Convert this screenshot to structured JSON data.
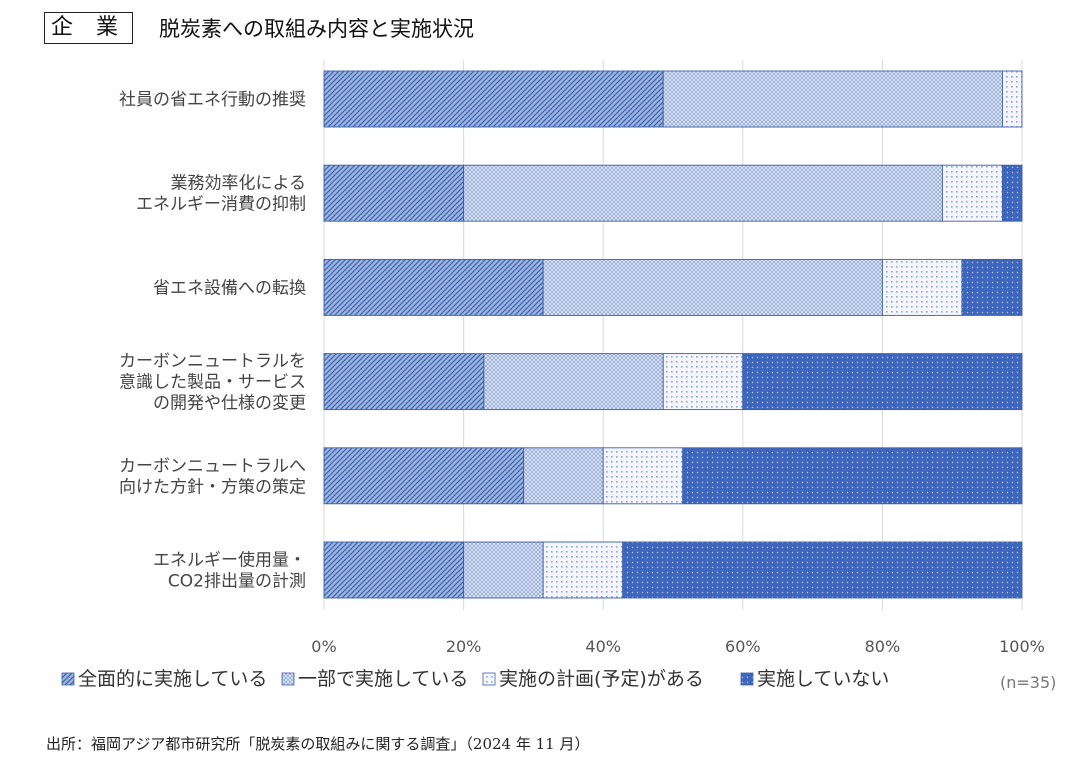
{
  "header": {
    "tag": "企 業",
    "title": "脱炭素への取組み内容と実施状況"
  },
  "chart_data": {
    "type": "bar",
    "orientation": "horizontal",
    "stacked": true,
    "categories": [
      [
        "社員の省エネ行動の推奨"
      ],
      [
        "業務効率化による",
        "エネルギー消費の抑制"
      ],
      [
        "省エネ設備への転換"
      ],
      [
        "カーボンニュートラルを",
        "意識した製品・サービス",
        "の開発や仕様の変更"
      ],
      [
        "カーボンニュートラルへ",
        "向けた方針・方策の策定"
      ],
      [
        "エネルギー使用量・",
        "CO2排出量の計測"
      ]
    ],
    "series": [
      {
        "name": "全面的に実施している",
        "values": [
          48.6,
          20.0,
          31.4,
          22.9,
          28.6,
          20.0
        ]
      },
      {
        "name": "一部で実施している",
        "values": [
          48.6,
          68.6,
          48.6,
          25.7,
          11.4,
          11.4
        ]
      },
      {
        "name": "実施の計画(予定)がある",
        "values": [
          2.8,
          8.6,
          11.4,
          11.4,
          11.4,
          11.4
        ]
      },
      {
        "name": "実施していない",
        "values": [
          0.0,
          2.8,
          8.6,
          40.0,
          48.6,
          57.2
        ]
      }
    ],
    "xlim": [
      0,
      100
    ],
    "xticks": [
      "0%",
      "20%",
      "40%",
      "60%",
      "80%",
      "100%"
    ],
    "grid": true,
    "legend_position": "bottom",
    "note": "(n=35)"
  },
  "source": "出所：福岡アジア都市研究所「脱炭素の取組みに関する調査」（2024 年 11 月）"
}
